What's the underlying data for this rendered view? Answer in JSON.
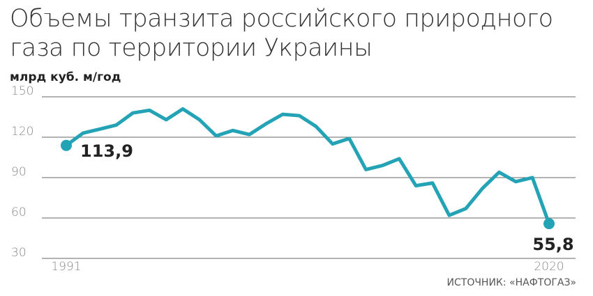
{
  "chart_data": {
    "type": "line",
    "title": "Объемы транзита российского природного газа по территории Украины",
    "y_label": "млрд куб. м/год",
    "source": "ИСТОЧНИК: «НАФТОГАЗ»",
    "x": [
      1991,
      1992,
      1993,
      1994,
      1995,
      1996,
      1997,
      1998,
      1999,
      2000,
      2001,
      2002,
      2003,
      2004,
      2005,
      2006,
      2007,
      2008,
      2009,
      2010,
      2011,
      2012,
      2013,
      2014,
      2015,
      2016,
      2017,
      2018,
      2019,
      2020
    ],
    "series": [
      {
        "color": "#23a3b5",
        "values": [
          113.9,
          123,
          126,
          129,
          138,
          140,
          133,
          141,
          133,
          121,
          125,
          122,
          130,
          137,
          136,
          128,
          115,
          119,
          96,
          99,
          104,
          84,
          86,
          62,
          67,
          82,
          94,
          87,
          90,
          55.8
        ],
        "value_labels": [
          "113,9",
          null,
          null,
          null,
          null,
          null,
          null,
          null,
          null,
          null,
          null,
          null,
          null,
          null,
          null,
          null,
          null,
          null,
          null,
          null,
          null,
          null,
          null,
          null,
          null,
          null,
          null,
          null,
          null,
          "55,8"
        ]
      }
    ],
    "xlim": [
      1991,
      2020
    ],
    "xticks": [
      1991,
      2020
    ],
    "ylim": [
      30,
      150
    ],
    "yticks": [
      30,
      60,
      90,
      120,
      150
    ],
    "grid": true
  }
}
